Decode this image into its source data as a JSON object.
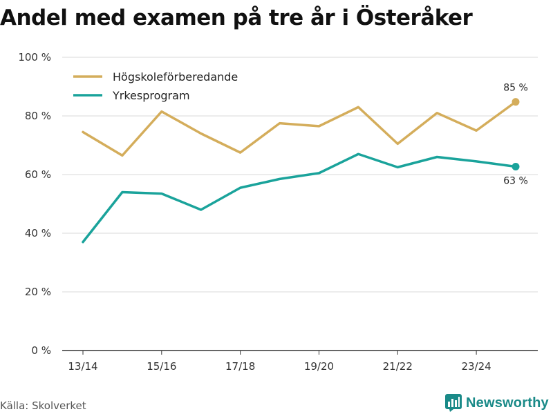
{
  "title": "Andel med examen på tre år i Österåker",
  "source": "Källa: Skolverket",
  "brand": "Newsworthy",
  "colors": {
    "series1": "#d4ad5b",
    "series2": "#1aa39b",
    "grid": "#d9d9d9",
    "axis": "#333333",
    "brand": "#1a8a88"
  },
  "chart_data": {
    "type": "line",
    "title": "Andel med examen på tre år i Österåker",
    "xlabel": "",
    "ylabel": "",
    "ylim": [
      0,
      100
    ],
    "y_ticks": [
      0,
      20,
      40,
      60,
      80,
      100
    ],
    "y_tick_labels": [
      "0 %",
      "20 %",
      "40 %",
      "60 %",
      "80 %",
      "100 %"
    ],
    "categories": [
      "13/14",
      "14/15",
      "15/16",
      "16/17",
      "17/18",
      "18/19",
      "19/20",
      "20/21",
      "21/22",
      "22/23",
      "23/24",
      "24/25"
    ],
    "x_tick_labels": [
      "13/14",
      "",
      "15/16",
      "",
      "17/18",
      "",
      "19/20",
      "",
      "21/22",
      "",
      "23/24",
      ""
    ],
    "legend_position": "top-left",
    "series": [
      {
        "name": "Högskoleförberedande",
        "color": "#d4ad5b",
        "values": [
          74.5,
          66.5,
          81.5,
          74,
          67.5,
          77.5,
          76.5,
          83,
          70.5,
          81,
          75,
          84.8
        ],
        "end_label": "85 %",
        "end_label_position": "above"
      },
      {
        "name": "Yrkesprogram",
        "color": "#1aa39b",
        "values": [
          37,
          54,
          53.5,
          48,
          55.5,
          58.5,
          60.5,
          67,
          62.5,
          66,
          64.5,
          62.7
        ],
        "end_label": "63 %",
        "end_label_position": "below"
      }
    ]
  }
}
